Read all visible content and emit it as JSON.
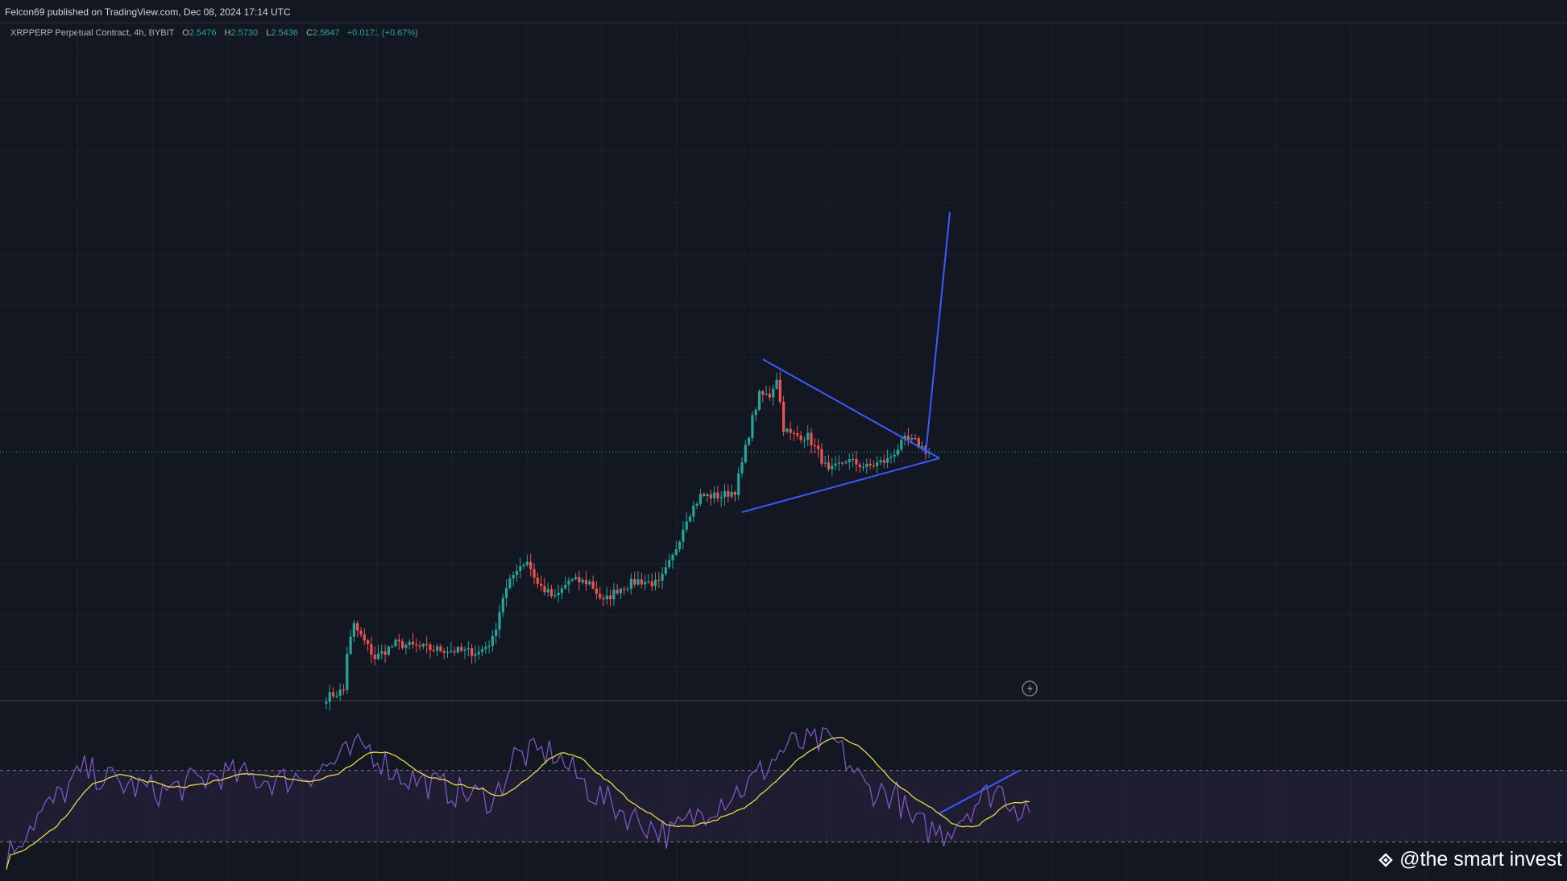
{
  "header": {
    "published": "Felcon69 published on TradingView.com, Dec 08, 2024 17:14 UTC"
  },
  "legend": {
    "symbol": "XRPPERP Perpetual Contract, 4h, BYBIT",
    "open_label": "O",
    "open": "2.5476",
    "high_label": "H",
    "high": "2.5730",
    "low_label": "L",
    "low": "2.5436",
    "close_label": "C",
    "close": "2.5647",
    "change": "+0.0171 (+0.67%)"
  },
  "watermark": {
    "text": "@the smart invest",
    "icon": "binance-diamond-logo"
  },
  "colors": {
    "background": "#131722",
    "up": "#26a69a",
    "down": "#ef5350",
    "drawing": "#3d5afe",
    "rsi": "#7e57c2",
    "rsi_ma": "#e6d94a"
  },
  "chart_data": [
    {
      "type": "candlestick",
      "symbol": "XRPPERP",
      "timeframe": "4h",
      "last_close": 2.5647,
      "anchors": [
        {
          "i": 0,
          "c": 1.2
        },
        {
          "i": 5,
          "c": 1.24
        },
        {
          "i": 6,
          "c": 1.45
        },
        {
          "i": 8,
          "c": 1.6
        },
        {
          "i": 14,
          "c": 1.42
        },
        {
          "i": 20,
          "c": 1.5
        },
        {
          "i": 30,
          "c": 1.47
        },
        {
          "i": 44,
          "c": 1.45
        },
        {
          "i": 48,
          "c": 1.52
        },
        {
          "i": 51,
          "c": 1.76
        },
        {
          "i": 55,
          "c": 1.92
        },
        {
          "i": 58,
          "c": 1.96
        },
        {
          "i": 61,
          "c": 1.83
        },
        {
          "i": 66,
          "c": 1.75
        },
        {
          "i": 70,
          "c": 1.85
        },
        {
          "i": 76,
          "c": 1.84
        },
        {
          "i": 80,
          "c": 1.73
        },
        {
          "i": 84,
          "c": 1.8
        },
        {
          "i": 90,
          "c": 1.85
        },
        {
          "i": 96,
          "c": 1.83
        },
        {
          "i": 100,
          "c": 1.98
        },
        {
          "i": 104,
          "c": 2.2
        },
        {
          "i": 108,
          "c": 2.32
        },
        {
          "i": 114,
          "c": 2.32
        },
        {
          "i": 118,
          "c": 2.35
        },
        {
          "i": 120,
          "c": 2.5
        },
        {
          "i": 123,
          "c": 2.75
        },
        {
          "i": 125,
          "c": 2.88
        },
        {
          "i": 128,
          "c": 2.88
        },
        {
          "i": 130,
          "c": 2.98
        },
        {
          "i": 132,
          "c": 2.7
        },
        {
          "i": 134,
          "c": 2.66
        },
        {
          "i": 139,
          "c": 2.65
        },
        {
          "i": 142,
          "c": 2.56
        },
        {
          "i": 145,
          "c": 2.45
        },
        {
          "i": 150,
          "c": 2.52
        },
        {
          "i": 156,
          "c": 2.48
        },
        {
          "i": 162,
          "c": 2.52
        },
        {
          "i": 167,
          "c": 2.63
        },
        {
          "i": 170,
          "c": 2.62
        },
        {
          "i": 174,
          "c": 2.56
        }
      ],
      "drawings": {
        "triangle_upper": [
          {
            "i": 126,
            "c": 3.08
          },
          {
            "i": 177,
            "c": 2.53
          }
        ],
        "triangle_lower": [
          {
            "i": 120,
            "c": 2.23
          },
          {
            "i": 177,
            "c": 2.53
          }
        ],
        "projection": [
          {
            "i": 173,
            "c": 2.55
          },
          {
            "i": 180,
            "c": 3.9
          }
        ]
      }
    },
    {
      "type": "line",
      "name": "RSI",
      "levels": [
        70,
        30
      ],
      "ylim": [
        10,
        100
      ]
    }
  ]
}
